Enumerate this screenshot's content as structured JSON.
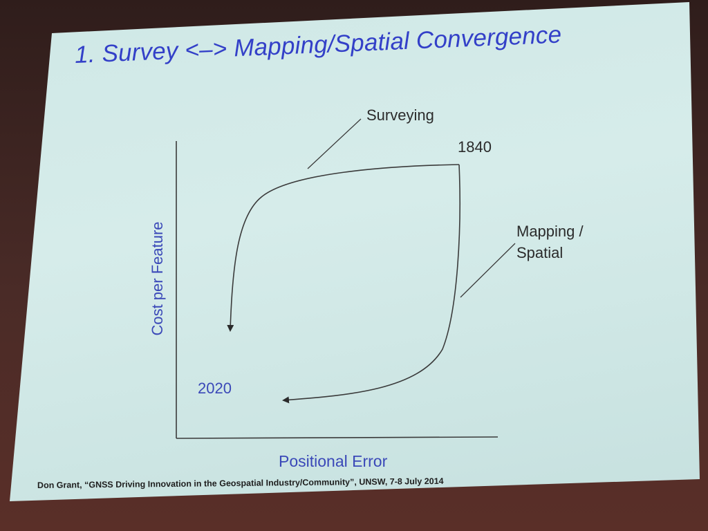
{
  "slide": {
    "title": "1. Survey <–> Mapping/Spatial Convergence",
    "footer": "Don Grant, “GNSS Driving Innovation in the Geospatial Industry/Community”, UNSW, 7-8 July 2014"
  },
  "diagram": {
    "y_axis_label": "Cost per Feature",
    "x_axis_label": "Positional Error",
    "curves": [
      {
        "name": "Surveying",
        "label": "Surveying"
      },
      {
        "name": "Mapping / Spatial",
        "label_line1": "Mapping /",
        "label_line2": "Spatial"
      }
    ],
    "start_year": "1840",
    "end_year": "2020",
    "colors": {
      "title": "#3340c8",
      "axis_labels": "#3a48b8",
      "curves": "#3a3a3a",
      "background": "#d3eae8"
    }
  }
}
